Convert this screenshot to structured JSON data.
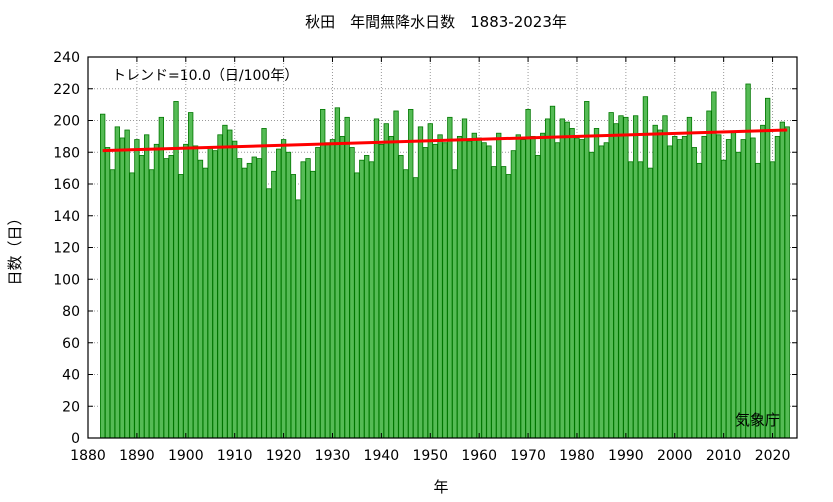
{
  "chart_data": {
    "type": "bar",
    "title": "秋田　年間無降水日数　1883-2023年",
    "xlabel": "年",
    "ylabel": "日数（日）",
    "trend_label": "トレンド=10.0（日/100年）",
    "source_label": "気象庁",
    "xlim": [
      1880,
      2025
    ],
    "ylim": [
      0,
      240
    ],
    "x_ticks": [
      1880,
      1890,
      1900,
      1910,
      1920,
      1930,
      1940,
      1950,
      1960,
      1970,
      1980,
      1990,
      2000,
      2010,
      2020
    ],
    "y_ticks": [
      0,
      20,
      40,
      60,
      80,
      100,
      120,
      140,
      160,
      180,
      200,
      220,
      240
    ],
    "grid": true,
    "start_year": 1883,
    "end_year": 2023,
    "values": [
      204,
      183,
      169,
      196,
      189,
      194,
      167,
      188,
      178,
      191,
      169,
      185,
      202,
      176,
      178,
      212,
      166,
      185,
      205,
      184,
      175,
      170,
      183,
      181,
      191,
      197,
      194,
      187,
      176,
      170,
      173,
      177,
      176,
      195,
      157,
      168,
      182,
      188,
      180,
      166,
      150,
      174,
      176,
      168,
      183,
      207,
      186,
      188,
      208,
      190,
      202,
      183,
      167,
      175,
      178,
      174,
      201,
      185,
      198,
      190,
      206,
      178,
      169,
      207,
      164,
      196,
      183,
      198,
      185,
      191,
      186,
      202,
      169,
      190,
      201,
      187,
      192,
      189,
      186,
      184,
      171,
      192,
      171,
      166,
      181,
      191,
      188,
      207,
      190,
      178,
      192,
      201,
      209,
      186,
      201,
      199,
      195,
      189,
      188,
      212,
      180,
      195,
      184,
      186,
      205,
      198,
      203,
      202,
      174,
      203,
      174,
      215,
      170,
      197,
      194,
      203,
      184,
      190,
      188,
      190,
      202,
      183,
      173,
      190,
      206,
      218,
      191,
      175,
      188,
      193,
      180,
      188,
      223,
      189,
      173,
      197,
      214,
      174,
      190,
      199,
      196
    ],
    "trend": {
      "start": 181,
      "end": 194
    },
    "colors": {
      "bar_fill": "#55bb55",
      "bar_edge": "#007700",
      "trend": "#ff0000",
      "grid": "#999999"
    }
  }
}
